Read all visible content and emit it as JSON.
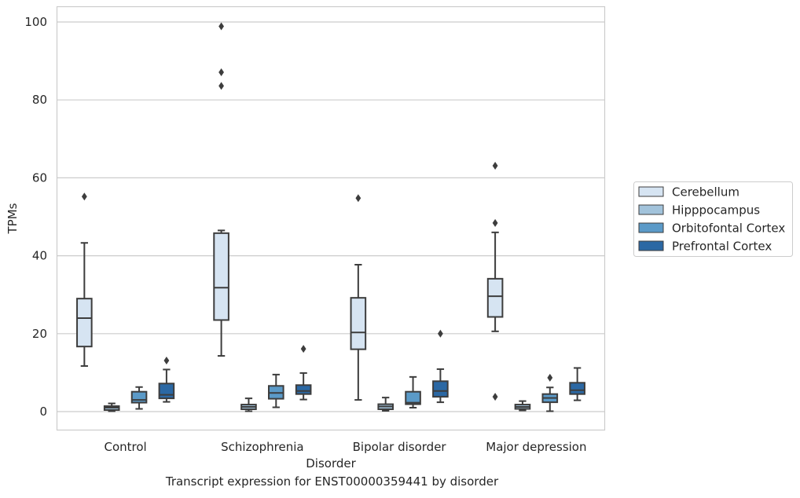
{
  "caption": "Transcript expression for ENST00000359441 by disorder",
  "chart_data": {
    "type": "box",
    "title": "",
    "xlabel": "Disorder",
    "ylabel": "TPMs",
    "ylim": [
      -4.8,
      104
    ],
    "yticks": [
      0,
      20,
      40,
      60,
      80,
      100
    ],
    "grid": "horizontal",
    "legend_position": "outside-right",
    "categories": [
      "Control",
      "Schizophrenia",
      "Bipolar disorder",
      "Major depression"
    ],
    "series": [
      {
        "name": "Cerebellum",
        "color": "#d6e4f2",
        "boxes": [
          {
            "whislo": 11.7,
            "q1": 16.7,
            "med": 24.0,
            "q3": 29.0,
            "whishi": 43.3,
            "fliers": [
              55.2
            ]
          },
          {
            "whislo": 14.3,
            "q1": 23.5,
            "med": 31.8,
            "q3": 45.8,
            "whishi": 46.5,
            "fliers": [
              83.6,
              87.1,
              98.9
            ]
          },
          {
            "whislo": 3.0,
            "q1": 16.0,
            "med": 20.3,
            "q3": 29.2,
            "whishi": 37.7,
            "fliers": [
              54.8
            ]
          },
          {
            "whislo": 20.6,
            "q1": 24.3,
            "med": 29.6,
            "q3": 34.1,
            "whishi": 46.0,
            "fliers": [
              48.4,
              63.1,
              3.8
            ]
          }
        ]
      },
      {
        "name": "Hipppocampus",
        "color": "#a2c3db",
        "boxes": [
          {
            "whislo": 0.1,
            "q1": 0.4,
            "med": 1.0,
            "q3": 1.4,
            "whishi": 2.1,
            "fliers": []
          },
          {
            "whislo": 0.1,
            "q1": 0.6,
            "med": 1.2,
            "q3": 1.8,
            "whishi": 3.4,
            "fliers": []
          },
          {
            "whislo": 0.2,
            "q1": 0.6,
            "med": 1.3,
            "q3": 1.9,
            "whishi": 3.6,
            "fliers": []
          },
          {
            "whislo": 0.3,
            "q1": 0.7,
            "med": 1.2,
            "q3": 1.8,
            "whishi": 2.7,
            "fliers": []
          }
        ]
      },
      {
        "name": "Orbitofontal Cortex",
        "color": "#5b9ac8",
        "boxes": [
          {
            "whislo": 0.7,
            "q1": 2.3,
            "med": 3.0,
            "q3": 5.1,
            "whishi": 6.3,
            "fliers": []
          },
          {
            "whislo": 1.1,
            "q1": 3.3,
            "med": 4.8,
            "q3": 6.6,
            "whishi": 9.5,
            "fliers": []
          },
          {
            "whislo": 1.0,
            "q1": 1.9,
            "med": 2.3,
            "q3": 5.1,
            "whishi": 8.9,
            "fliers": []
          },
          {
            "whislo": 0.1,
            "q1": 2.4,
            "med": 3.5,
            "q3": 4.5,
            "whishi": 6.2,
            "fliers": [
              8.7
            ]
          }
        ]
      },
      {
        "name": "Prefrontal Cortex",
        "color": "#2b68a4",
        "boxes": [
          {
            "whislo": 2.5,
            "q1": 3.4,
            "med": 4.3,
            "q3": 7.2,
            "whishi": 10.8,
            "fliers": [
              13.1
            ]
          },
          {
            "whislo": 3.1,
            "q1": 4.5,
            "med": 5.3,
            "q3": 6.8,
            "whishi": 9.9,
            "fliers": [
              16.1
            ]
          },
          {
            "whislo": 2.4,
            "q1": 3.8,
            "med": 5.3,
            "q3": 7.8,
            "whishi": 10.9,
            "fliers": [
              20.0
            ]
          },
          {
            "whislo": 2.9,
            "q1": 4.5,
            "med": 5.5,
            "q3": 7.4,
            "whishi": 11.2,
            "fliers": []
          }
        ]
      }
    ]
  }
}
